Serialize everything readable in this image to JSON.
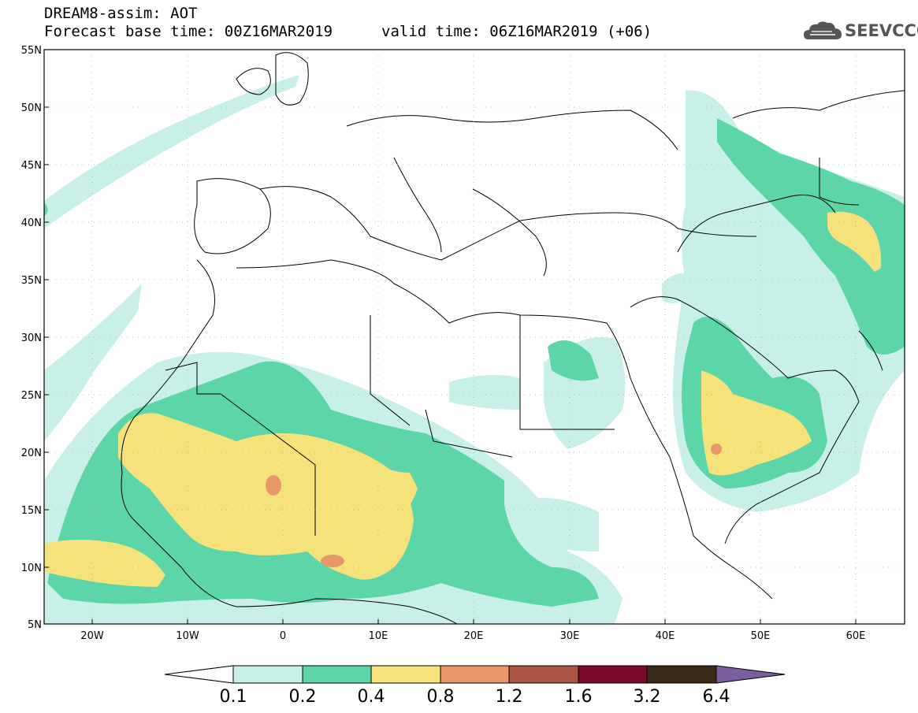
{
  "header": {
    "title": "DREAM8-assim: AOT",
    "base_time": "Forecast base time: 00Z16MAR2019",
    "valid_time": "valid time: 06Z16MAR2019 (+06)"
  },
  "logo": {
    "text": "SEEVCCC",
    "icon": "cloud-icon"
  },
  "map": {
    "lat_labels": [
      "55N",
      "50N",
      "45N",
      "40N",
      "35N",
      "30N",
      "25N",
      "20N",
      "15N",
      "10N",
      "5N"
    ],
    "lon_labels": [
      "20W",
      "10W",
      "0",
      "10E",
      "20E",
      "30E",
      "40E",
      "50E",
      "60E"
    ]
  },
  "colorbar": {
    "labels": [
      "0.1",
      "0.2",
      "0.4",
      "0.8",
      "1.2",
      "1.6",
      "3.2",
      "6.4"
    ],
    "colors": [
      "#ffffff",
      "#c8f0e8",
      "#5cd6a8",
      "#f5e27a",
      "#e8966a",
      "#ad5545",
      "#7b0a2a",
      "#3b2a17",
      "#7a5ea0"
    ]
  }
}
